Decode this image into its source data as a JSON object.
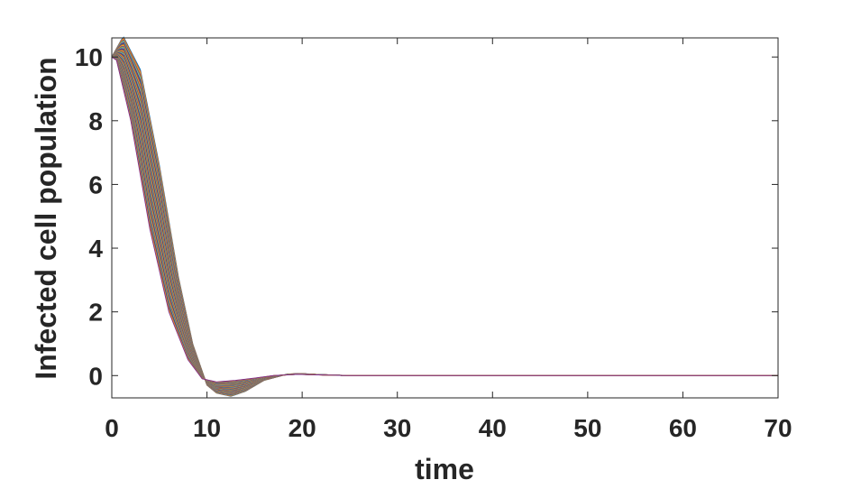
{
  "chart_data": {
    "type": "line",
    "title": "",
    "xlabel": "time",
    "ylabel": "Infected cell population",
    "xlim": [
      0,
      70
    ],
    "ylim": [
      -0.7,
      10.6
    ],
    "xticks": [
      0,
      10,
      20,
      30,
      40,
      50,
      60,
      70
    ],
    "yticks": [
      0,
      2,
      4,
      6,
      8,
      10
    ],
    "grid": false,
    "legend": "none",
    "series_count": 60,
    "series_range": {
      "first": {
        "x": [
          0,
          1.2,
          3,
          5,
          7,
          8.5,
          10,
          11,
          12.5,
          14,
          16,
          18.5,
          20,
          22,
          25,
          30,
          70
        ],
        "y": [
          10.0,
          10.65,
          9.6,
          6.6,
          3.1,
          1.0,
          -0.3,
          -0.55,
          -0.65,
          -0.5,
          -0.15,
          0.05,
          0.06,
          0.03,
          0.0,
          0.0,
          0.0
        ]
      },
      "last": {
        "x": [
          0,
          0.5,
          2,
          4,
          6,
          8,
          9.5,
          11,
          13,
          15,
          17,
          19.5,
          22,
          25,
          30,
          70
        ],
        "y": [
          10.0,
          9.9,
          8.0,
          4.6,
          2.0,
          0.5,
          -0.1,
          -0.2,
          -0.15,
          -0.08,
          0.0,
          0.04,
          0.02,
          0.0,
          0.0,
          0.0
        ]
      }
    },
    "colors": [
      "#0072BD",
      "#D95319",
      "#EDB120",
      "#7E2F8E",
      "#77AC30",
      "#4DBEEE",
      "#A2142F"
    ]
  }
}
